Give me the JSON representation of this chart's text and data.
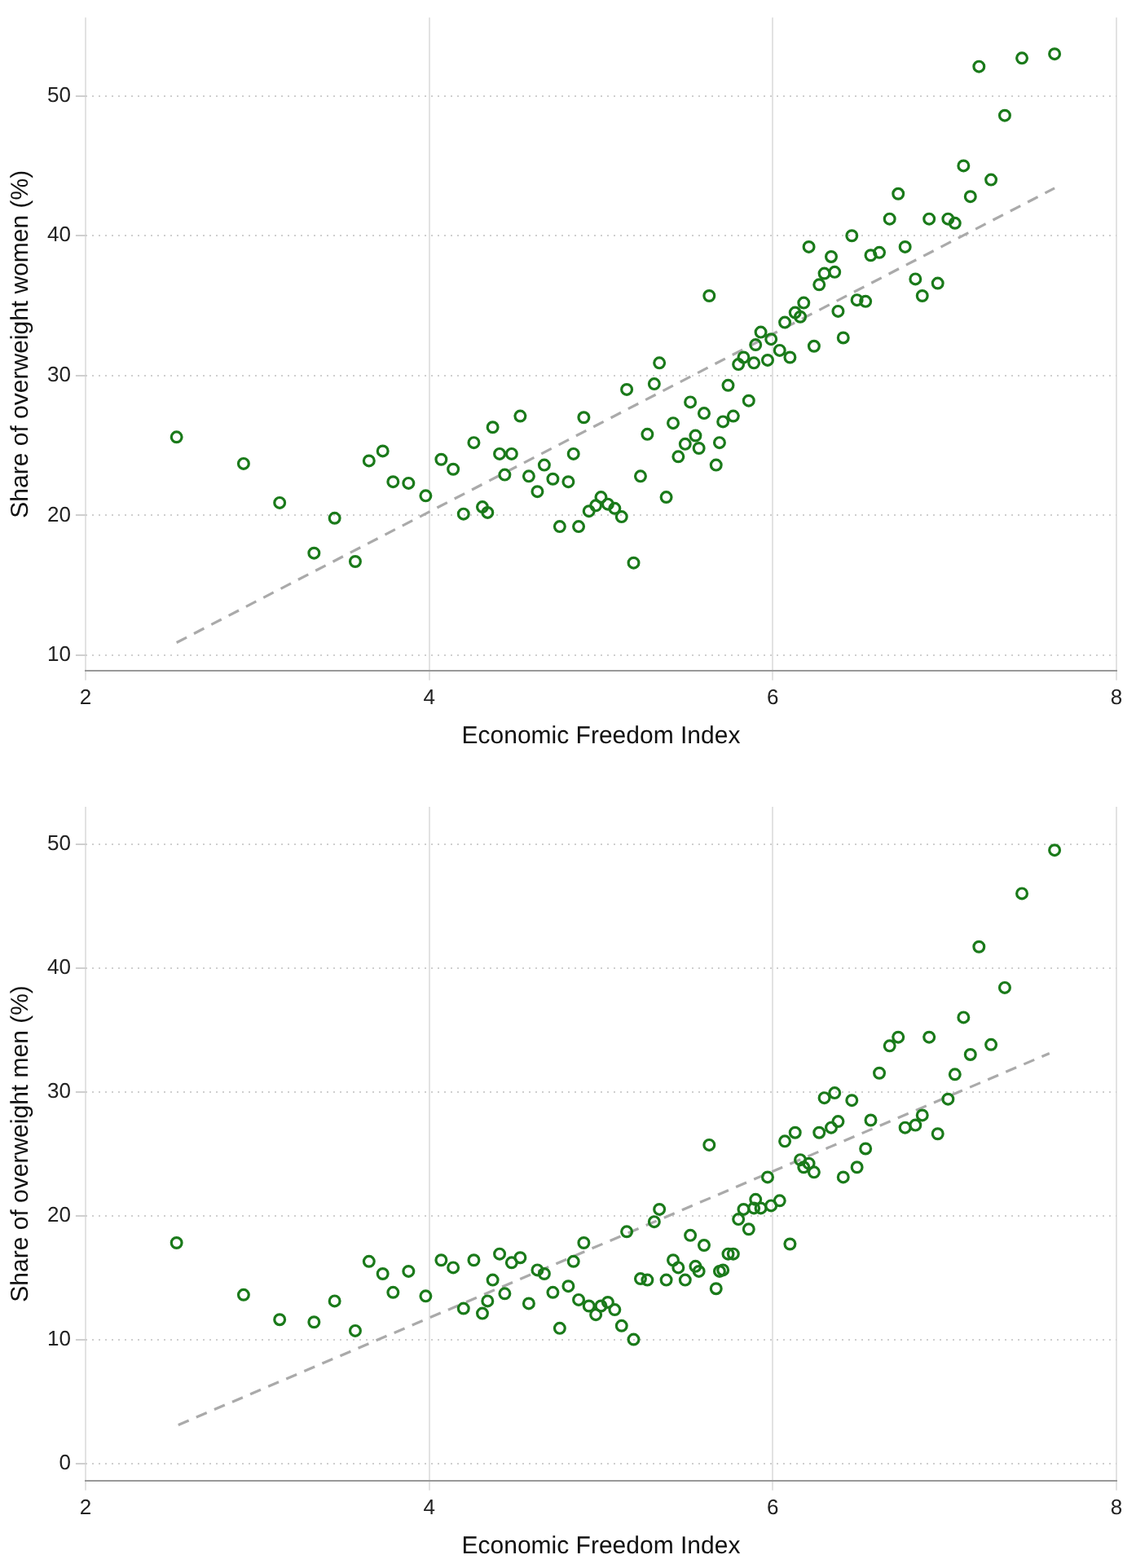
{
  "chart_data": [
    {
      "type": "scatter",
      "xlabel": "Economic Freedom Index",
      "ylabel": "Share of overweight women (%)",
      "xlim": [
        2,
        8
      ],
      "ylim": [
        8.9,
        55.6
      ],
      "xticks": [
        2,
        4,
        6,
        8
      ],
      "yticks": [
        10,
        20,
        30,
        40,
        50
      ],
      "grid": true,
      "legend": false,
      "marker": "circle",
      "series": [
        {
          "color": "#1a7a1a",
          "x": [
            2.53,
            2.92,
            3.13,
            3.33,
            3.45,
            3.57,
            3.65,
            3.73,
            3.79,
            3.88,
            3.98,
            4.07,
            4.14,
            4.2,
            4.26,
            4.31,
            4.34,
            4.37,
            4.41,
            4.48,
            4.44,
            4.53,
            4.58,
            4.63,
            4.67,
            4.72,
            4.76,
            4.81,
            4.84,
            4.87,
            4.9,
            4.93,
            4.97,
            5.0,
            5.04,
            5.08,
            5.12,
            5.19,
            5.23,
            5.38,
            5.27,
            5.15,
            5.31,
            5.34,
            5.42,
            5.45,
            5.49,
            5.52,
            5.55,
            5.57,
            5.6,
            5.63,
            5.67,
            5.69,
            5.71,
            5.74,
            5.77,
            5.8,
            5.83,
            5.86,
            5.89,
            5.9,
            5.93,
            5.97,
            5.99,
            6.04,
            6.07,
            6.1,
            6.13,
            6.16,
            6.18,
            6.21,
            6.24,
            6.27,
            6.3,
            6.34,
            6.36,
            6.38,
            6.41,
            6.46,
            6.49,
            6.54,
            6.57,
            6.62,
            6.68,
            6.73,
            6.77,
            6.83,
            6.87,
            6.91,
            6.96,
            7.02,
            7.06,
            7.11,
            7.15,
            7.2,
            7.27,
            7.35,
            7.45,
            7.64
          ],
          "values": [
            25.6,
            23.7,
            20.9,
            17.3,
            19.8,
            16.7,
            23.9,
            24.6,
            22.4,
            22.3,
            21.4,
            24.0,
            23.3,
            20.1,
            25.2,
            20.6,
            20.2,
            26.3,
            24.4,
            24.4,
            22.9,
            27.1,
            22.8,
            21.7,
            23.6,
            22.6,
            19.2,
            22.4,
            24.4,
            19.2,
            27.0,
            20.3,
            20.7,
            21.3,
            20.8,
            20.5,
            19.9,
            16.6,
            22.8,
            21.3,
            25.8,
            29.0,
            29.4,
            30.9,
            26.6,
            24.2,
            25.1,
            28.1,
            25.7,
            24.8,
            27.3,
            35.7,
            23.6,
            25.2,
            26.7,
            29.3,
            27.1,
            30.8,
            31.3,
            28.2,
            30.9,
            32.2,
            33.1,
            31.1,
            32.6,
            31.8,
            33.8,
            31.3,
            34.5,
            34.2,
            35.2,
            39.2,
            32.1,
            36.5,
            37.3,
            38.5,
            37.4,
            34.6,
            32.7,
            40.0,
            35.4,
            35.3,
            38.6,
            38.8,
            41.2,
            43.0,
            39.2,
            36.9,
            35.7,
            41.2,
            36.6,
            41.2,
            40.9,
            45.0,
            42.8,
            52.1,
            44.0,
            48.6,
            52.7,
            53.0
          ]
        },
        {
          "type": "line",
          "color": "#aaaaaa",
          "line_style": "dashed",
          "marker": "none",
          "x": [
            2.53,
            7.64
          ],
          "values": [
            10.9,
            43.4
          ]
        }
      ]
    },
    {
      "type": "scatter",
      "xlabel": "Economic Freedom Index",
      "ylabel": "Share of overweight men (%)",
      "xlim": [
        2,
        8
      ],
      "ylim": [
        -1.4,
        53
      ],
      "xticks": [
        2,
        4,
        6,
        8
      ],
      "yticks": [
        0,
        10,
        20,
        30,
        40,
        50
      ],
      "grid": true,
      "legend": false,
      "marker": "circle",
      "series": [
        {
          "color": "#1a7a1a",
          "x": [
            2.53,
            2.92,
            3.13,
            3.33,
            3.45,
            3.57,
            3.65,
            3.73,
            3.79,
            3.88,
            3.98,
            4.07,
            4.14,
            4.2,
            4.26,
            4.31,
            4.34,
            4.37,
            4.41,
            4.44,
            4.48,
            4.53,
            4.58,
            4.63,
            4.67,
            4.72,
            4.76,
            4.81,
            4.84,
            4.87,
            4.9,
            4.93,
            4.97,
            5.0,
            5.04,
            5.08,
            5.12,
            5.19,
            5.15,
            5.23,
            5.27,
            5.31,
            5.34,
            5.38,
            5.42,
            5.45,
            5.49,
            5.52,
            5.55,
            5.57,
            5.6,
            5.63,
            5.67,
            5.69,
            5.71,
            5.74,
            5.77,
            5.8,
            5.83,
            5.86,
            5.89,
            5.9,
            5.93,
            5.97,
            5.99,
            6.04,
            6.07,
            6.1,
            6.13,
            6.16,
            6.18,
            6.21,
            6.24,
            6.27,
            6.3,
            6.34,
            6.36,
            6.38,
            6.41,
            6.46,
            6.49,
            6.54,
            6.57,
            6.62,
            6.68,
            6.73,
            6.77,
            6.83,
            6.87,
            6.91,
            6.96,
            7.02,
            7.06,
            7.11,
            7.15,
            7.2,
            7.27,
            7.35,
            7.45,
            7.64
          ],
          "values": [
            17.8,
            13.6,
            11.6,
            11.4,
            13.1,
            10.7,
            16.3,
            15.3,
            13.8,
            15.5,
            13.5,
            16.4,
            15.8,
            12.5,
            16.4,
            12.1,
            13.1,
            14.8,
            16.9,
            13.7,
            16.2,
            16.6,
            12.9,
            15.6,
            15.3,
            13.8,
            10.9,
            14.3,
            16.3,
            13.2,
            17.8,
            12.7,
            12.0,
            12.7,
            13.0,
            12.4,
            11.1,
            10.0,
            18.7,
            14.9,
            14.8,
            19.5,
            20.5,
            14.8,
            16.4,
            15.8,
            14.8,
            18.4,
            15.9,
            15.5,
            17.6,
            25.7,
            14.1,
            15.5,
            15.6,
            16.9,
            16.9,
            19.7,
            20.5,
            18.9,
            20.6,
            21.3,
            20.6,
            23.1,
            20.8,
            21.2,
            26.0,
            17.7,
            26.7,
            24.5,
            23.9,
            24.2,
            23.5,
            26.7,
            29.5,
            27.1,
            29.9,
            27.6,
            23.1,
            29.3,
            23.9,
            25.4,
            27.7,
            31.5,
            33.7,
            34.4,
            27.1,
            27.3,
            28.1,
            34.4,
            26.6,
            29.4,
            31.4,
            36.0,
            33.0,
            41.7,
            33.8,
            38.4,
            46.0,
            49.5
          ]
        },
        {
          "type": "line",
          "color": "#aaaaaa",
          "line_style": "dashed",
          "marker": "none",
          "x": [
            2.54,
            7.61
          ],
          "values": [
            3.1,
            33.1
          ]
        }
      ]
    }
  ]
}
